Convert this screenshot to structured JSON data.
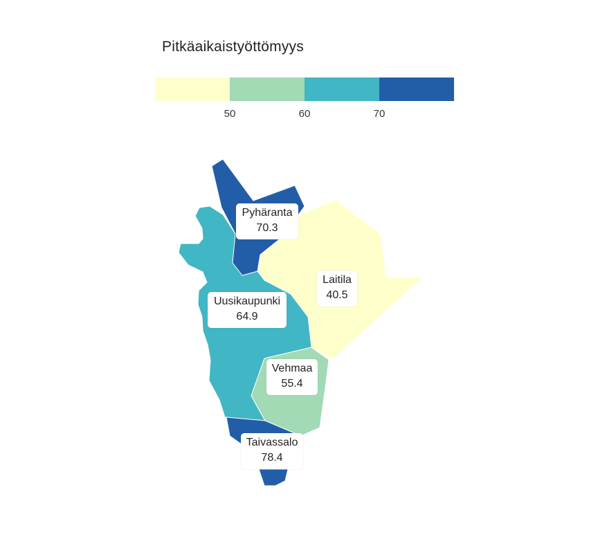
{
  "legend": {
    "title": "Pitkäaikaistyöttömyys",
    "colors": [
      "#ffffcc",
      "#a1dab4",
      "#41b6c4",
      "#225ea8"
    ],
    "ticks": [
      "50",
      "60",
      "70"
    ]
  },
  "regions": [
    {
      "id": "pyharanta",
      "name": "Pyhäranta",
      "value": "70.3",
      "color": "#225ea8"
    },
    {
      "id": "laitila",
      "name": "Laitila",
      "value": "40.5",
      "color": "#ffffcc"
    },
    {
      "id": "uusikaupunki",
      "name": "Uusikaupunki",
      "value": "64.9",
      "color": "#41b6c4"
    },
    {
      "id": "vehmaa",
      "name": "Vehmaa",
      "value": "55.4",
      "color": "#a1dab4"
    },
    {
      "id": "taivassalo",
      "name": "Taivassalo",
      "value": "78.4",
      "color": "#225ea8"
    }
  ]
}
